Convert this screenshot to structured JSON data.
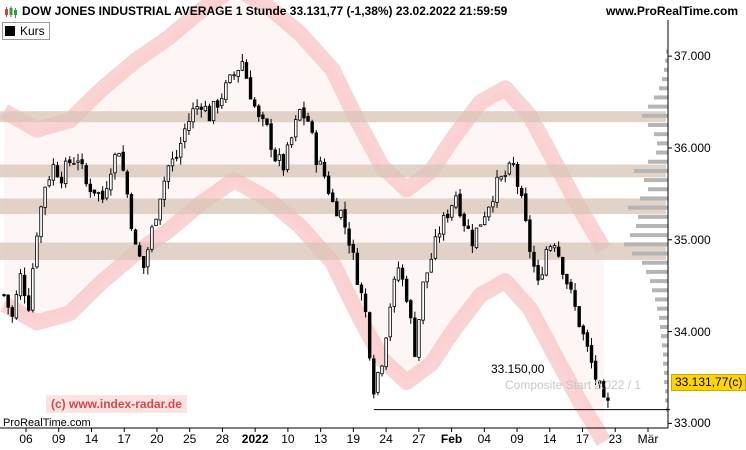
{
  "header": {
    "title": "DOW JONES INDUSTRIAL AVERAGE 1 Stunde 33.131,77 (-1,38%) 23.02.2022 21:59:59",
    "site": "www.ProRealTime.com"
  },
  "legend": {
    "label": "Kurs"
  },
  "watermark": "(c) www.index-radar.de",
  "footer_brand": "ProRealTime.com",
  "composite_label": "Composite Start 2.022 / 1",
  "annotations": {
    "low_label": "33.150,00",
    "last_price": "33.131,77(c)"
  },
  "colors": {
    "candle": "#000000",
    "band": "#f6b1b1",
    "zone": "#d8c4b6",
    "last_box": "#ffd400",
    "watermark": "#d04a4a"
  },
  "chart_data": {
    "type": "candlestick",
    "ylim": [
      32950,
      37350
    ],
    "y_ticks": [
      "37.000",
      "36.000",
      "35.000",
      "34.000",
      "33.000"
    ],
    "y_tick_values": [
      37000,
      36000,
      35000,
      34000,
      33000
    ],
    "x_ticks": [
      "06",
      "09",
      "14",
      "17",
      "20",
      "25",
      "28",
      "2022",
      "10",
      "13",
      "19",
      "24",
      "27",
      "Feb",
      "04",
      "09",
      "14",
      "17",
      "23",
      "Mär"
    ],
    "x_tick_bold": [
      "2022",
      "Feb"
    ],
    "close_path": [
      [
        0,
        34400
      ],
      [
        2,
        34150
      ],
      [
        4,
        34600
      ],
      [
        6,
        34300
      ],
      [
        8,
        35100
      ],
      [
        10,
        35600
      ],
      [
        12,
        35800
      ],
      [
        14,
        35700
      ],
      [
        16,
        35850
      ],
      [
        18,
        35900
      ],
      [
        20,
        35600
      ],
      [
        22,
        35550
      ],
      [
        24,
        35450
      ],
      [
        26,
        35800
      ],
      [
        28,
        36000
      ],
      [
        30,
        35500
      ],
      [
        32,
        34900
      ],
      [
        34,
        34700
      ],
      [
        36,
        35100
      ],
      [
        38,
        35500
      ],
      [
        40,
        35800
      ],
      [
        42,
        35900
      ],
      [
        44,
        36200
      ],
      [
        46,
        36400
      ],
      [
        48,
        36500
      ],
      [
        50,
        36350
      ],
      [
        52,
        36500
      ],
      [
        54,
        36650
      ],
      [
        56,
        36800
      ],
      [
        58,
        36950
      ],
      [
        60,
        36600
      ],
      [
        62,
        36300
      ],
      [
        64,
        36200
      ],
      [
        66,
        35900
      ],
      [
        68,
        35800
      ],
      [
        70,
        36100
      ],
      [
        72,
        36400
      ],
      [
        74,
        36300
      ],
      [
        76,
        35900
      ],
      [
        78,
        35700
      ],
      [
        80,
        35400
      ],
      [
        82,
        35300
      ],
      [
        84,
        35000
      ],
      [
        86,
        34600
      ],
      [
        88,
        34200
      ],
      [
        90,
        33400
      ],
      [
        92,
        33700
      ],
      [
        94,
        34300
      ],
      [
        96,
        34700
      ],
      [
        98,
        34400
      ],
      [
        100,
        33800
      ],
      [
        102,
        34500
      ],
      [
        104,
        34800
      ],
      [
        106,
        35100
      ],
      [
        108,
        35300
      ],
      [
        110,
        35500
      ],
      [
        112,
        35200
      ],
      [
        114,
        35000
      ],
      [
        116,
        35200
      ],
      [
        118,
        35400
      ],
      [
        120,
        35600
      ],
      [
        122,
        35700
      ],
      [
        124,
        35800
      ],
      [
        126,
        35400
      ],
      [
        128,
        34900
      ],
      [
        130,
        34500
      ],
      [
        132,
        34900
      ],
      [
        134,
        35000
      ],
      [
        136,
        34700
      ],
      [
        138,
        34400
      ],
      [
        140,
        34100
      ],
      [
        142,
        33800
      ],
      [
        144,
        33500
      ],
      [
        146,
        33200
      ]
    ],
    "bars": 148,
    "seed": 7,
    "band_mid": [
      [
        0,
        35350
      ],
      [
        8,
        35150
      ],
      [
        16,
        35250
      ],
      [
        24,
        35600
      ],
      [
        32,
        35900
      ],
      [
        40,
        36150
      ],
      [
        48,
        36450
      ],
      [
        56,
        36700
      ],
      [
        64,
        36500
      ],
      [
        72,
        36200
      ],
      [
        80,
        35800
      ],
      [
        86,
        35250
      ],
      [
        92,
        34750
      ],
      [
        98,
        34500
      ],
      [
        104,
        34700
      ],
      [
        110,
        35100
      ],
      [
        116,
        35450
      ],
      [
        122,
        35600
      ],
      [
        128,
        35300
      ],
      [
        134,
        34800
      ],
      [
        140,
        34300
      ],
      [
        146,
        33850
      ]
    ],
    "band_halfwidth": 1050,
    "horizontal_zones": [
      [
        36280,
        36400
      ],
      [
        35680,
        35820
      ],
      [
        35280,
        35450
      ],
      [
        34780,
        34970
      ]
    ],
    "low_line": {
      "value": 33150,
      "from_bar": 90,
      "to_bar": 166
    },
    "volume_profile": [
      [
        37050,
        2
      ],
      [
        36950,
        3
      ],
      [
        36850,
        4
      ],
      [
        36750,
        6
      ],
      [
        36650,
        9
      ],
      [
        36550,
        14
      ],
      [
        36450,
        20
      ],
      [
        36350,
        26
      ],
      [
        36250,
        20
      ],
      [
        36150,
        14
      ],
      [
        36050,
        11
      ],
      [
        35950,
        12
      ],
      [
        35850,
        20
      ],
      [
        35750,
        34
      ],
      [
        35650,
        24
      ],
      [
        35550,
        20
      ],
      [
        35450,
        28
      ],
      [
        35350,
        40
      ],
      [
        35250,
        30
      ],
      [
        35150,
        32
      ],
      [
        35050,
        38
      ],
      [
        34950,
        44
      ],
      [
        34850,
        36
      ],
      [
        34750,
        26
      ],
      [
        34650,
        22
      ],
      [
        34550,
        18
      ],
      [
        34450,
        16
      ],
      [
        34350,
        13
      ],
      [
        34250,
        11
      ],
      [
        34150,
        9
      ],
      [
        34050,
        8
      ],
      [
        33950,
        7
      ],
      [
        33850,
        6
      ],
      [
        33750,
        5
      ],
      [
        33650,
        5
      ],
      [
        33550,
        4
      ],
      [
        33450,
        4
      ],
      [
        33350,
        3
      ],
      [
        33250,
        3
      ],
      [
        33150,
        2
      ]
    ]
  }
}
